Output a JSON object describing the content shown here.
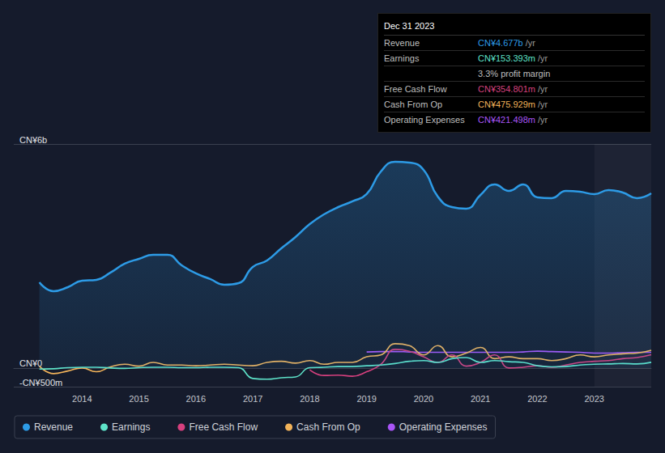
{
  "chart_data": {
    "type": "line",
    "x": [
      2013.25,
      2013.5,
      2013.75,
      2014,
      2014.25,
      2014.5,
      2014.75,
      2015,
      2015.25,
      2015.5,
      2015.75,
      2016,
      2016.25,
      2016.5,
      2016.75,
      2017,
      2017.25,
      2017.5,
      2017.75,
      2018,
      2018.25,
      2018.5,
      2018.75,
      2019,
      2019.25,
      2019.5,
      2019.75,
      2020,
      2020.25,
      2020.5,
      2020.75,
      2021,
      2021.25,
      2021.5,
      2021.75,
      2022,
      2022.25,
      2022.5,
      2022.75,
      2023,
      2023.25,
      2023.5,
      2023.75,
      2024
    ],
    "xlim": [
      2012.8,
      2024
    ],
    "xticks": [
      2014,
      2015,
      2016,
      2017,
      2018,
      2019,
      2020,
      2021,
      2022,
      2023
    ],
    "ylim": [
      -500,
      6000
    ],
    "yticks": [
      {
        "value": -500,
        "label": "-CN¥500m"
      },
      {
        "value": 0,
        "label": "CN¥0"
      },
      {
        "value": 6000,
        "label": "CN¥6b"
      }
    ],
    "grid": true,
    "legend": "bottom",
    "series": [
      {
        "name": "Revenue",
        "type": "area",
        "color": "#2d9be6",
        "values": [
          2296,
          2058,
          2166,
          2339,
          2361,
          2556,
          2794,
          2924,
          3032,
          3032,
          2751,
          2534,
          2383,
          2231,
          2274,
          2708,
          2881,
          3206,
          3509,
          3855,
          4115,
          4310,
          4462,
          4657,
          5263,
          5523,
          5502,
          5307,
          4592,
          4310,
          4267,
          4635,
          4917,
          4744,
          4917,
          4570,
          4549,
          4744,
          4722,
          4657,
          4765,
          4700,
          4549,
          4677
        ]
      },
      {
        "name": "Earnings",
        "type": "line",
        "color": "#5ee3c9",
        "values": [
          -30,
          -20,
          10,
          20,
          20,
          0,
          -10,
          10,
          20,
          20,
          10,
          10,
          20,
          20,
          10,
          -280,
          -300,
          -260,
          -240,
          10,
          20,
          40,
          40,
          60,
          80,
          120,
          180,
          200,
          150,
          250,
          280,
          150,
          200,
          170,
          150,
          60,
          30,
          40,
          80,
          100,
          110,
          120,
          110,
          153
        ]
      },
      {
        "name": "Free Cash Flow",
        "type": "line",
        "color": "#d6407e",
        "values": [
          null,
          null,
          null,
          null,
          null,
          null,
          null,
          null,
          null,
          null,
          null,
          null,
          null,
          null,
          null,
          null,
          null,
          null,
          null,
          -50,
          -200,
          -190,
          -220,
          -100,
          100,
          500,
          450,
          300,
          150,
          350,
          50,
          150,
          350,
          0,
          20,
          60,
          20,
          80,
          150,
          180,
          200,
          250,
          280,
          355
        ]
      },
      {
        "name": "Cash From Op",
        "type": "line",
        "color": "#f2b35a",
        "values": [
          50,
          -150,
          -80,
          0,
          -100,
          30,
          100,
          50,
          150,
          80,
          80,
          60,
          80,
          100,
          80,
          60,
          150,
          180,
          130,
          200,
          100,
          150,
          150,
          300,
          350,
          650,
          600,
          350,
          600,
          300,
          400,
          550,
          250,
          300,
          250,
          250,
          200,
          250,
          350,
          300,
          350,
          380,
          400,
          476
        ]
      },
      {
        "name": "Operating Expenses",
        "type": "line",
        "color": "#a855f7",
        "values": [
          null,
          null,
          null,
          null,
          null,
          null,
          null,
          null,
          null,
          null,
          null,
          null,
          null,
          null,
          null,
          null,
          null,
          null,
          null,
          null,
          null,
          null,
          null,
          430,
          440,
          440,
          430,
          420,
          420,
          420,
          420,
          420,
          420,
          420,
          430,
          450,
          440,
          430,
          420,
          400,
          400,
          410,
          420,
          421
        ]
      }
    ],
    "annotation": {
      "title": "Dec 31 2023",
      "rows": [
        {
          "label": "Revenue",
          "value": "CN¥4.677b",
          "unit": "/yr"
        },
        {
          "label": "Earnings",
          "value": "CN¥153.393m",
          "unit": "/yr"
        },
        {
          "value": "3.3% profit margin"
        },
        {
          "label": "Free Cash Flow",
          "value": "CN¥354.801m",
          "unit": "/yr"
        },
        {
          "label": "Cash From Op",
          "value": "CN¥475.929m",
          "unit": "/yr"
        },
        {
          "label": "Operating Expenses",
          "value": "CN¥421.498m",
          "unit": "/yr"
        }
      ]
    }
  }
}
